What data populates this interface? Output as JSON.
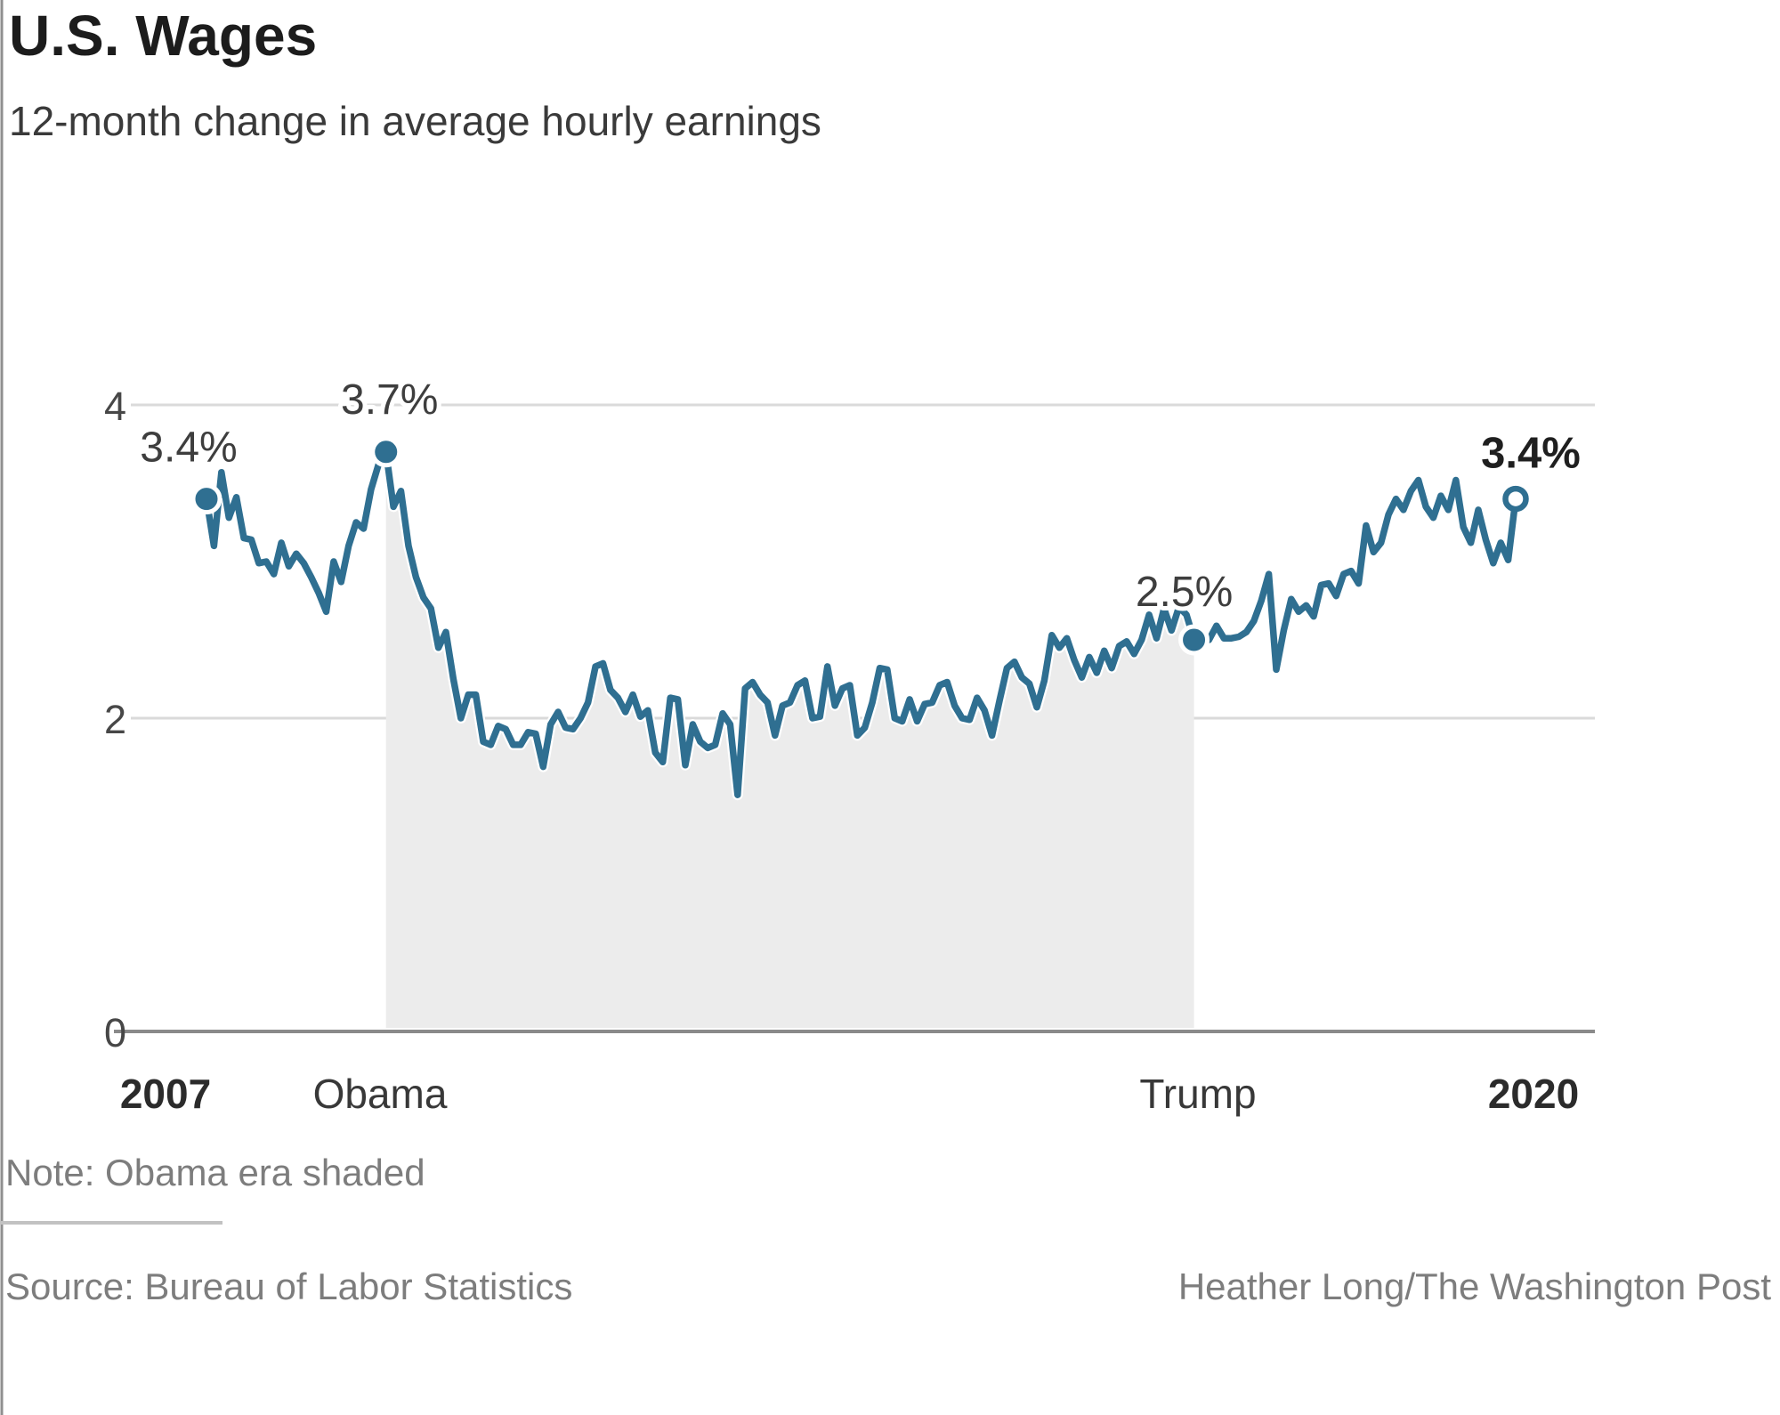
{
  "header": {
    "title": "U.S. Wages",
    "subtitle": "12-month change in average hourly earnings"
  },
  "footer": {
    "note": "Note: Obama era shaded",
    "source": "Source: Bureau of Labor Statistics",
    "credit": "Heather Long/The Washington Post"
  },
  "chart_data": {
    "type": "line",
    "title": "U.S. Wages",
    "subtitle": "12-month change in average hourly earnings",
    "ylabel": "",
    "xlabel": "",
    "ylim": [
      0,
      4.6
    ],
    "grid": "horizontal",
    "y_tick_labels": [
      "4",
      "2",
      "0"
    ],
    "y_tick_values": [
      4,
      2,
      0
    ],
    "x_labels": {
      "start": "2007",
      "obama": "Obama",
      "trump": "Trump",
      "end": "2020"
    },
    "shaded_region_note": "Obama era shaded",
    "colors": {
      "line": "#2f6f91",
      "marker": "#2f6f91",
      "shading": "#ececec",
      "gridline": "#dadada",
      "axis": "#8a8a8a"
    },
    "annotations": [
      {
        "index": 0,
        "label": "3.4%",
        "bold": false,
        "open_marker": false
      },
      {
        "index": 24,
        "label": "3.7%",
        "bold": false,
        "open_marker": false
      },
      {
        "index": 132,
        "label": "2.5%",
        "bold": false,
        "open_marker": false
      },
      {
        "index": 175,
        "label": "3.4%",
        "bold": true,
        "open_marker": true
      }
    ],
    "shaded_region": {
      "from_index": 24,
      "to_index": 132
    },
    "values": [
      3.4,
      3.1,
      3.57,
      3.28,
      3.41,
      3.15,
      3.14,
      2.99,
      3.0,
      2.92,
      3.12,
      2.97,
      3.05,
      2.99,
      2.9,
      2.8,
      2.68,
      3.0,
      2.87,
      3.1,
      3.25,
      3.21,
      3.46,
      3.62,
      3.7,
      3.35,
      3.45,
      3.1,
      2.9,
      2.77,
      2.7,
      2.45,
      2.55,
      2.25,
      2.0,
      2.15,
      2.15,
      1.85,
      1.83,
      1.95,
      1.93,
      1.83,
      1.83,
      1.91,
      1.9,
      1.69,
      1.96,
      2.04,
      1.94,
      1.93,
      2.0,
      2.1,
      2.33,
      2.35,
      2.18,
      2.13,
      2.04,
      2.15,
      2.01,
      2.05,
      1.78,
      1.72,
      2.13,
      2.12,
      1.7,
      1.96,
      1.85,
      1.81,
      1.83,
      2.03,
      1.96,
      1.51,
      2.19,
      2.23,
      2.15,
      2.1,
      1.89,
      2.08,
      2.1,
      2.21,
      2.24,
      2.0,
      2.01,
      2.33,
      2.08,
      2.19,
      2.21,
      1.89,
      1.94,
      2.1,
      2.32,
      2.31,
      2.0,
      1.98,
      2.12,
      1.98,
      2.09,
      2.1,
      2.21,
      2.23,
      2.08,
      2.0,
      1.99,
      2.13,
      2.05,
      1.89,
      2.11,
      2.32,
      2.36,
      2.26,
      2.22,
      2.07,
      2.24,
      2.53,
      2.45,
      2.51,
      2.37,
      2.26,
      2.39,
      2.29,
      2.43,
      2.32,
      2.46,
      2.49,
      2.41,
      2.5,
      2.66,
      2.51,
      2.7,
      2.56,
      2.71,
      2.66,
      2.5,
      2.5,
      2.5,
      2.59,
      2.51,
      2.51,
      2.52,
      2.55,
      2.62,
      2.75,
      2.92,
      2.31,
      2.56,
      2.76,
      2.68,
      2.72,
      2.65,
      2.85,
      2.86,
      2.78,
      2.92,
      2.94,
      2.86,
      3.23,
      3.06,
      3.12,
      3.3,
      3.4,
      3.33,
      3.45,
      3.52,
      3.35,
      3.28,
      3.42,
      3.33,
      3.52,
      3.22,
      3.12,
      3.33,
      3.14,
      2.99,
      3.12,
      3.01,
      3.4
    ]
  }
}
